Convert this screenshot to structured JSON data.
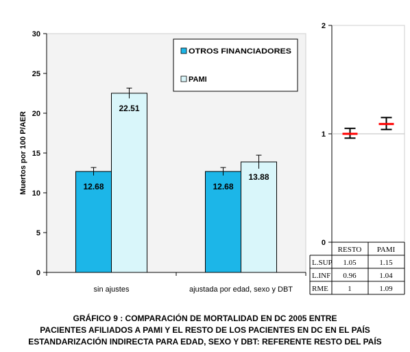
{
  "colors": {
    "otros": "#1cb6e8",
    "pami": "#d9f6fa",
    "background": "#f3f3f3",
    "ref_line": "#ff0000",
    "text": "#000000"
  },
  "chart_data": [
    {
      "type": "bar",
      "ylabel": "Muertos por 100 P/AER",
      "ylim": [
        0,
        30
      ],
      "yticks": [
        0,
        5,
        10,
        15,
        20,
        25,
        30
      ],
      "categories": [
        "sin ajustes",
        "ajustada por edad, sexo y DBT"
      ],
      "series": [
        {
          "name": "OTROS FINANCIADORES",
          "values": [
            12.68,
            12.68
          ],
          "errors": [
            0.5,
            0.5
          ],
          "labels": [
            "12.68",
            "12.68"
          ]
        },
        {
          "name": "PAMI",
          "values": [
            22.51,
            13.88
          ],
          "errors": [
            0.65,
            0.85
          ],
          "labels": [
            "22.51",
            "13.88"
          ]
        }
      ],
      "legend_position": "top-right",
      "grid": false
    },
    {
      "type": "scatter",
      "ylim": [
        0,
        2
      ],
      "yticks": [
        0,
        1,
        2
      ],
      "reference_line": 1,
      "points": [
        {
          "label": "RESTO",
          "rme": 1,
          "lower": 0.96,
          "upper": 1.05
        },
        {
          "label": "PAMI",
          "rme": 1.09,
          "lower": 1.04,
          "upper": 1.15
        }
      ],
      "table": {
        "columns": [
          "RESTO",
          "PAMI"
        ],
        "rows": [
          {
            "label": "L.SUP",
            "values": [
              "1.05",
              "1.15"
            ]
          },
          {
            "label": "L.INF",
            "values": [
              "0.96",
              "1.04"
            ]
          },
          {
            "label": "RME",
            "values": [
              "1",
              "1.09"
            ]
          }
        ]
      }
    }
  ],
  "caption": {
    "line1": "GRÁFICO 9 :  COMPARACIÓN DE  MORTALIDAD EN DC  2005 ENTRE",
    "line2": "PACIENTES AFILIADOS A PAMI Y EL RESTO DE LOS PACIENTES EN DC EN EL PAÍS",
    "line3": "ESTANDARIZACIÓN INDIRECTA PARA EDAD, SEXO Y DBT: REFERENTE RESTO DEL PAÍS"
  }
}
